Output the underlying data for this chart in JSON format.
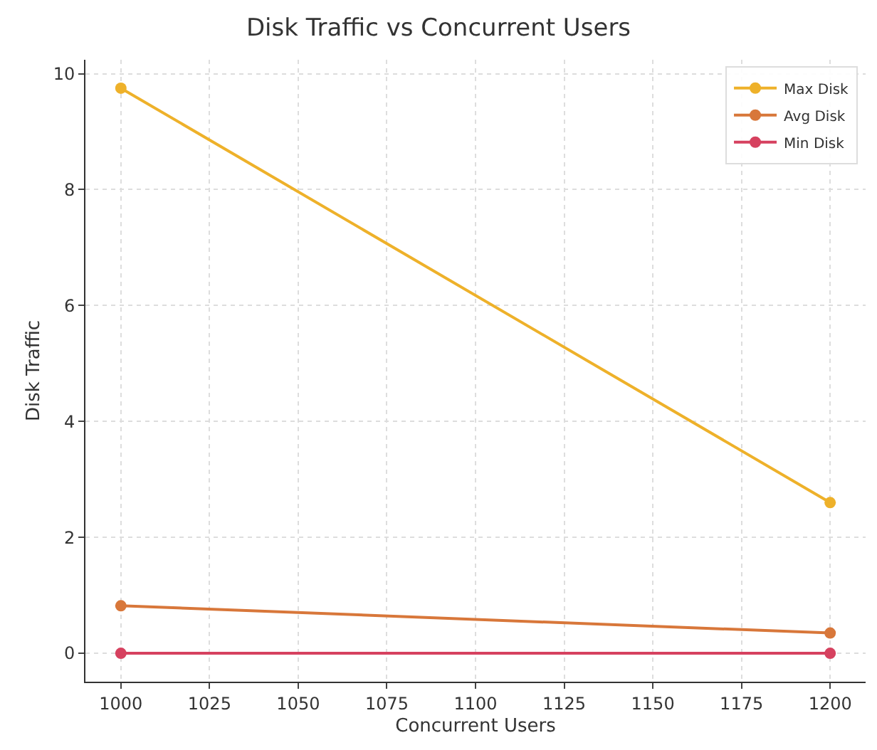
{
  "chart_data": {
    "type": "line",
    "title": "Disk Traffic vs Concurrent Users",
    "xlabel": "Concurrent Users",
    "ylabel": "Disk Traffic",
    "x": [
      1000,
      1200
    ],
    "series": [
      {
        "name": "Max Disk",
        "color": "#eeb12a",
        "values": [
          9.75,
          2.6
        ]
      },
      {
        "name": "Avg Disk",
        "color": "#d8773a",
        "values": [
          0.82,
          0.35
        ]
      },
      {
        "name": "Min Disk",
        "color": "#d6415f",
        "values": [
          0,
          0
        ]
      }
    ],
    "xlim": [
      990,
      1210
    ],
    "xticks": [
      1000,
      1025,
      1050,
      1075,
      1100,
      1125,
      1150,
      1175,
      1200
    ],
    "ylim": [
      -0.49,
      10.24
    ],
    "yticks": [
      0,
      2,
      4,
      6,
      8,
      10
    ],
    "grid": true,
    "legend": "top right",
    "marker": "circle",
    "line_style": "solid"
  }
}
